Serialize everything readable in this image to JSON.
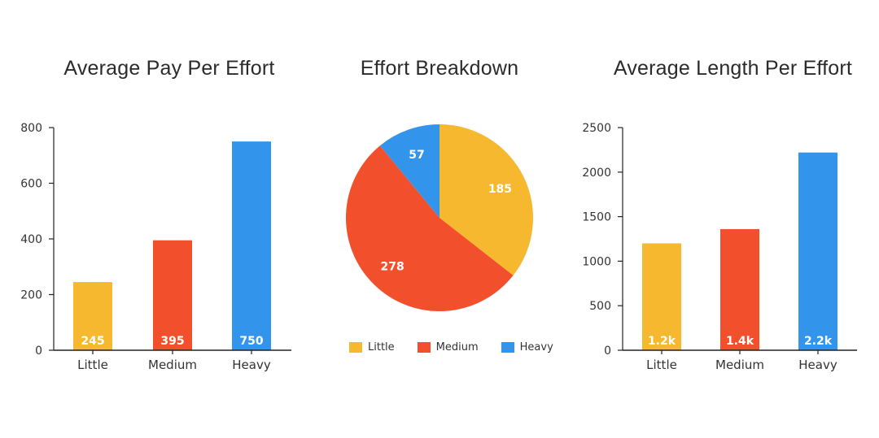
{
  "colors": {
    "little": "#f5b82e",
    "medium": "#f2502c",
    "heavy": "#3394eb",
    "axis": "#222222",
    "label": "#ffffff"
  },
  "chart_data": [
    {
      "type": "bar",
      "title": "Average Pay Per Effort",
      "categories": [
        "Little",
        "Medium",
        "Heavy"
      ],
      "values": [
        245,
        395,
        750
      ],
      "data_labels": [
        "245",
        "395",
        "750"
      ],
      "ylim": [
        0,
        800
      ],
      "yticks": [
        0,
        200,
        400,
        600,
        800
      ],
      "ytick_labels": [
        "0",
        "200",
        "400",
        "600",
        "800"
      ],
      "grid": false,
      "legend": "none"
    },
    {
      "type": "pie",
      "title": "Effort Breakdown",
      "categories": [
        "Little",
        "Medium",
        "Heavy"
      ],
      "values": [
        185,
        278,
        57
      ],
      "data_labels": [
        "185",
        "278",
        "57"
      ],
      "legend": "bottom"
    },
    {
      "type": "bar",
      "title": "Average Length Per Effort",
      "categories": [
        "Little",
        "Medium",
        "Heavy"
      ],
      "values": [
        1200,
        1360,
        2220
      ],
      "data_labels": [
        "1.2k",
        "1.4k",
        "2.2k"
      ],
      "ylim": [
        0,
        2500
      ],
      "yticks": [
        0,
        500,
        1000,
        1500,
        2000,
        2500
      ],
      "ytick_labels": [
        "0",
        "500",
        "1000",
        "1500",
        "2000",
        "2500"
      ],
      "grid": false,
      "legend": "none"
    }
  ]
}
